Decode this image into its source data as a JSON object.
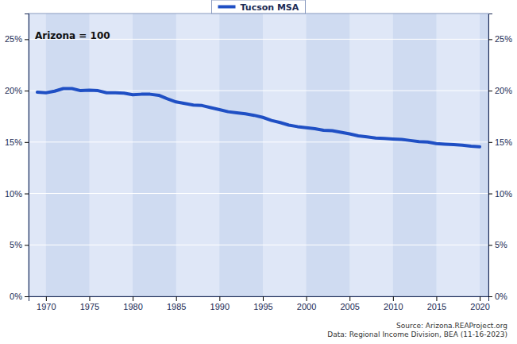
{
  "chart_data": {
    "type": "line",
    "annotations": [
      "Arizona = 100"
    ],
    "source": [
      "Source: Arizona.REAProject.org",
      "Data: Regional Income Division, BEA (11-16-2023)"
    ],
    "x": [
      1969,
      1970,
      1971,
      1972,
      1973,
      1974,
      1975,
      1976,
      1977,
      1978,
      1979,
      1980,
      1981,
      1982,
      1983,
      1984,
      1985,
      1986,
      1987,
      1988,
      1989,
      1990,
      1991,
      1992,
      1993,
      1994,
      1995,
      1996,
      1997,
      1998,
      1999,
      2000,
      2001,
      2002,
      2003,
      2004,
      2005,
      2006,
      2007,
      2008,
      2009,
      2010,
      2011,
      2012,
      2013,
      2014,
      2015,
      2016,
      2017,
      2018,
      2019,
      2020
    ],
    "series": [
      {
        "name": "Tucson MSA",
        "color": "#1f4fc4",
        "values": [
          19.85,
          19.8,
          19.95,
          20.2,
          20.2,
          20.0,
          20.05,
          20.0,
          19.8,
          19.8,
          19.75,
          19.6,
          19.65,
          19.65,
          19.55,
          19.2,
          18.9,
          18.75,
          18.6,
          18.55,
          18.35,
          18.15,
          17.95,
          17.85,
          17.75,
          17.6,
          17.4,
          17.1,
          16.9,
          16.65,
          16.5,
          16.4,
          16.3,
          16.15,
          16.1,
          15.95,
          15.8,
          15.6,
          15.5,
          15.4,
          15.35,
          15.3,
          15.25,
          15.15,
          15.05,
          15.0,
          14.85,
          14.8,
          14.75,
          14.7,
          14.6,
          14.55
        ]
      }
    ],
    "xlim": [
      1968,
      2021
    ],
    "xticks": [
      1970,
      1975,
      1980,
      1985,
      1990,
      1995,
      2000,
      2005,
      2010,
      2015,
      2020
    ],
    "ylim": [
      0,
      27.5
    ],
    "yticks": [
      {
        "value": 0,
        "label": "0%"
      },
      {
        "value": 5,
        "label": "5%"
      },
      {
        "value": 10,
        "label": "10%"
      },
      {
        "value": 15,
        "label": "15%"
      },
      {
        "value": 20,
        "label": "20%"
      },
      {
        "value": 25,
        "label": "25%"
      }
    ],
    "grid": true,
    "legend": "top"
  }
}
